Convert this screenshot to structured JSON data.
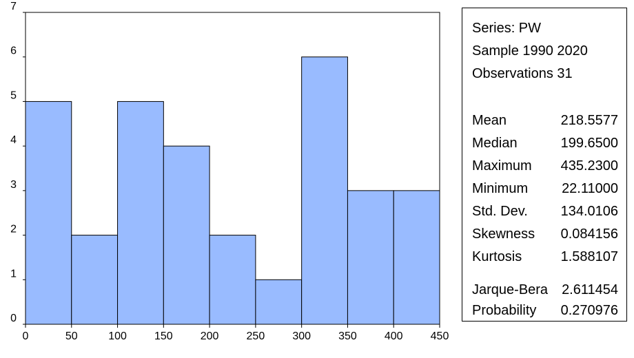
{
  "chart_data": {
    "type": "bar",
    "bin_edges": [
      0,
      50,
      100,
      150,
      200,
      250,
      300,
      350,
      400,
      450
    ],
    "values": [
      5,
      2,
      5,
      4,
      2,
      1,
      6,
      3,
      3
    ],
    "xlim": [
      0,
      450
    ],
    "ylim": [
      0,
      7
    ],
    "x_ticks": [
      "0",
      "50",
      "100",
      "150",
      "200",
      "250",
      "300",
      "350",
      "400",
      "450"
    ],
    "y_ticks": [
      "0",
      "1",
      "2",
      "3",
      "4",
      "5",
      "6",
      "7"
    ],
    "grid": false,
    "bar_color": "#99bbff"
  },
  "stats": {
    "header": [
      "Series: PW",
      "Sample 1990 2020",
      "Observations 31"
    ],
    "descriptive": [
      {
        "label": "Mean",
        "value": "218.5577"
      },
      {
        "label": "Median",
        "value": "199.6500"
      },
      {
        "label": "Maximum",
        "value": "435.2300"
      },
      {
        "label": "Minimum",
        "value": "22.11000"
      },
      {
        "label": "Std. Dev.",
        "value": "134.0106"
      },
      {
        "label": "Skewness",
        "value": "0.084156"
      },
      {
        "label": "Kurtosis",
        "value": "1.588107"
      }
    ],
    "tests": [
      {
        "label": "Jarque-Bera",
        "value": "2.611454"
      },
      {
        "label": "Probability",
        "value": "0.270976"
      }
    ]
  }
}
